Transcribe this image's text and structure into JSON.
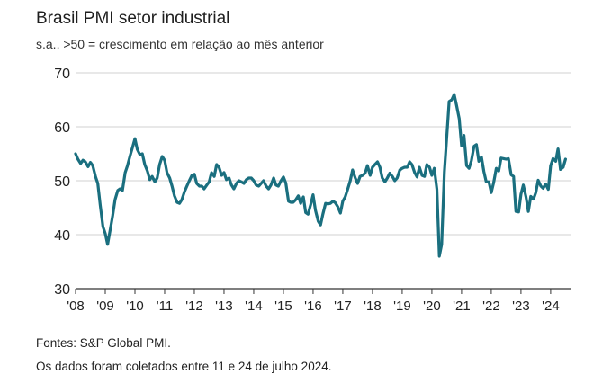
{
  "chart_data": {
    "type": "line",
    "title": "Brasil PMI setor industrial",
    "subtitle": "s.a., >50 = crescimento em relação ao mês anterior",
    "xlabel": "",
    "ylabel": "",
    "ylim": [
      30,
      70
    ],
    "yticks": [
      "30",
      "40",
      "50",
      "60",
      "70"
    ],
    "xlim": [
      2008.0,
      2024.67
    ],
    "xtick_labels": [
      "'08",
      "'09",
      "'10",
      "'11",
      "'12",
      "'13",
      "'14",
      "'15",
      "'16",
      "'17",
      "'18",
      "'19",
      "'20",
      "'21",
      "'22",
      "'23",
      "'24"
    ],
    "grid": "horizontal",
    "color": "#1a6f7f",
    "series": [
      {
        "name": "Brasil PMI setor industrial",
        "values": [
          [
            2008.0,
            55.0
          ],
          [
            2008.08,
            54.0
          ],
          [
            2008.17,
            53.2
          ],
          [
            2008.25,
            53.8
          ],
          [
            2008.33,
            53.5
          ],
          [
            2008.42,
            52.6
          ],
          [
            2008.5,
            53.4
          ],
          [
            2008.58,
            52.8
          ],
          [
            2008.67,
            50.8
          ],
          [
            2008.75,
            49.5
          ],
          [
            2008.83,
            45.5
          ],
          [
            2008.92,
            41.5
          ],
          [
            2009.0,
            40.2
          ],
          [
            2009.08,
            38.2
          ],
          [
            2009.17,
            41.0
          ],
          [
            2009.25,
            43.5
          ],
          [
            2009.33,
            46.5
          ],
          [
            2009.42,
            48.2
          ],
          [
            2009.5,
            48.5
          ],
          [
            2009.58,
            48.2
          ],
          [
            2009.67,
            51.5
          ],
          [
            2009.75,
            52.8
          ],
          [
            2009.83,
            54.5
          ],
          [
            2009.92,
            56.2
          ],
          [
            2010.0,
            57.8
          ],
          [
            2010.08,
            55.8
          ],
          [
            2010.17,
            54.8
          ],
          [
            2010.25,
            55.0
          ],
          [
            2010.33,
            53.0
          ],
          [
            2010.42,
            51.8
          ],
          [
            2010.5,
            50.2
          ],
          [
            2010.58,
            50.8
          ],
          [
            2010.67,
            49.8
          ],
          [
            2010.75,
            50.5
          ],
          [
            2010.83,
            53.0
          ],
          [
            2010.92,
            54.5
          ],
          [
            2011.0,
            53.8
          ],
          [
            2011.08,
            51.5
          ],
          [
            2011.17,
            50.5
          ],
          [
            2011.25,
            49.0
          ],
          [
            2011.33,
            47.2
          ],
          [
            2011.42,
            46.0
          ],
          [
            2011.5,
            45.8
          ],
          [
            2011.58,
            46.5
          ],
          [
            2011.67,
            48.0
          ],
          [
            2011.75,
            49.0
          ],
          [
            2011.83,
            50.0
          ],
          [
            2011.92,
            51.0
          ],
          [
            2012.0,
            51.2
          ],
          [
            2012.08,
            49.5
          ],
          [
            2012.17,
            49.0
          ],
          [
            2012.25,
            49.0
          ],
          [
            2012.33,
            48.5
          ],
          [
            2012.42,
            49.2
          ],
          [
            2012.5,
            49.8
          ],
          [
            2012.58,
            51.5
          ],
          [
            2012.67,
            50.8
          ],
          [
            2012.75,
            53.0
          ],
          [
            2012.83,
            52.5
          ],
          [
            2012.92,
            51.0
          ],
          [
            2013.0,
            51.5
          ],
          [
            2013.08,
            50.2
          ],
          [
            2013.17,
            50.5
          ],
          [
            2013.25,
            49.2
          ],
          [
            2013.33,
            48.5
          ],
          [
            2013.42,
            49.5
          ],
          [
            2013.5,
            50.0
          ],
          [
            2013.58,
            49.8
          ],
          [
            2013.67,
            49.5
          ],
          [
            2013.75,
            50.2
          ],
          [
            2013.83,
            50.5
          ],
          [
            2013.92,
            50.5
          ],
          [
            2014.0,
            50.0
          ],
          [
            2014.08,
            49.2
          ],
          [
            2014.17,
            49.0
          ],
          [
            2014.25,
            49.5
          ],
          [
            2014.33,
            50.0
          ],
          [
            2014.42,
            49.0
          ],
          [
            2014.5,
            48.5
          ],
          [
            2014.58,
            49.2
          ],
          [
            2014.67,
            50.5
          ],
          [
            2014.75,
            49.2
          ],
          [
            2014.83,
            49.0
          ],
          [
            2014.92,
            50.0
          ],
          [
            2015.0,
            50.7
          ],
          [
            2015.08,
            49.6
          ],
          [
            2015.17,
            46.2
          ],
          [
            2015.25,
            46.0
          ],
          [
            2015.33,
            46.0
          ],
          [
            2015.42,
            46.5
          ],
          [
            2015.5,
            47.2
          ],
          [
            2015.58,
            45.8
          ],
          [
            2015.67,
            47.0
          ],
          [
            2015.75,
            44.1
          ],
          [
            2015.83,
            43.8
          ],
          [
            2015.92,
            45.6
          ],
          [
            2016.0,
            47.4
          ],
          [
            2016.08,
            44.5
          ],
          [
            2016.17,
            42.5
          ],
          [
            2016.25,
            41.8
          ],
          [
            2016.33,
            43.8
          ],
          [
            2016.42,
            45.8
          ],
          [
            2016.5,
            45.7
          ],
          [
            2016.58,
            45.8
          ],
          [
            2016.67,
            46.2
          ],
          [
            2016.75,
            45.9
          ],
          [
            2016.83,
            45.2
          ],
          [
            2016.92,
            44.0
          ],
          [
            2017.0,
            46.2
          ],
          [
            2017.08,
            47.0
          ],
          [
            2017.17,
            48.5
          ],
          [
            2017.25,
            50.0
          ],
          [
            2017.33,
            52.0
          ],
          [
            2017.42,
            50.5
          ],
          [
            2017.5,
            49.5
          ],
          [
            2017.58,
            50.8
          ],
          [
            2017.67,
            51.0
          ],
          [
            2017.75,
            51.4
          ],
          [
            2017.83,
            52.8
          ],
          [
            2017.92,
            51.0
          ],
          [
            2018.0,
            52.5
          ],
          [
            2018.08,
            53.0
          ],
          [
            2018.17,
            53.5
          ],
          [
            2018.25,
            52.5
          ],
          [
            2018.33,
            50.5
          ],
          [
            2018.42,
            49.8
          ],
          [
            2018.5,
            50.5
          ],
          [
            2018.58,
            51.4
          ],
          [
            2018.67,
            50.8
          ],
          [
            2018.75,
            50.0
          ],
          [
            2018.83,
            50.5
          ],
          [
            2018.92,
            52.0
          ],
          [
            2019.0,
            52.3
          ],
          [
            2019.08,
            52.5
          ],
          [
            2019.17,
            52.5
          ],
          [
            2019.25,
            53.5
          ],
          [
            2019.33,
            53.0
          ],
          [
            2019.42,
            51.5
          ],
          [
            2019.5,
            50.7
          ],
          [
            2019.58,
            52.5
          ],
          [
            2019.67,
            51.0
          ],
          [
            2019.75,
            50.8
          ],
          [
            2019.83,
            53.0
          ],
          [
            2019.92,
            52.5
          ],
          [
            2020.0,
            51.0
          ],
          [
            2020.08,
            52.3
          ],
          [
            2020.17,
            48.4
          ],
          [
            2020.25,
            36.0
          ],
          [
            2020.33,
            38.2
          ],
          [
            2020.42,
            51.6
          ],
          [
            2020.5,
            58.0
          ],
          [
            2020.58,
            64.7
          ],
          [
            2020.67,
            65.0
          ],
          [
            2020.75,
            66.0
          ],
          [
            2020.83,
            64.0
          ],
          [
            2020.92,
            61.5
          ],
          [
            2021.0,
            56.5
          ],
          [
            2021.08,
            58.4
          ],
          [
            2021.17,
            52.8
          ],
          [
            2021.25,
            52.3
          ],
          [
            2021.33,
            53.7
          ],
          [
            2021.42,
            56.4
          ],
          [
            2021.5,
            56.7
          ],
          [
            2021.58,
            53.6
          ],
          [
            2021.67,
            54.4
          ],
          [
            2021.75,
            51.7
          ],
          [
            2021.83,
            49.8
          ],
          [
            2021.92,
            49.8
          ],
          [
            2022.0,
            47.8
          ],
          [
            2022.08,
            49.6
          ],
          [
            2022.17,
            52.3
          ],
          [
            2022.25,
            51.8
          ],
          [
            2022.33,
            54.2
          ],
          [
            2022.42,
            54.1
          ],
          [
            2022.5,
            54.0
          ],
          [
            2022.58,
            54.1
          ],
          [
            2022.67,
            51.1
          ],
          [
            2022.75,
            50.8
          ],
          [
            2022.83,
            44.3
          ],
          [
            2022.92,
            44.2
          ],
          [
            2023.0,
            47.5
          ],
          [
            2023.08,
            49.2
          ],
          [
            2023.17,
            47.0
          ],
          [
            2023.25,
            44.3
          ],
          [
            2023.33,
            47.1
          ],
          [
            2023.42,
            46.6
          ],
          [
            2023.5,
            47.8
          ],
          [
            2023.58,
            50.1
          ],
          [
            2023.67,
            49.0
          ],
          [
            2023.75,
            48.6
          ],
          [
            2023.83,
            49.4
          ],
          [
            2023.92,
            48.4
          ],
          [
            2024.0,
            52.8
          ],
          [
            2024.08,
            54.1
          ],
          [
            2024.17,
            53.6
          ],
          [
            2024.25,
            55.9
          ],
          [
            2024.33,
            52.1
          ],
          [
            2024.42,
            52.5
          ],
          [
            2024.5,
            54.0
          ]
        ]
      }
    ]
  },
  "footer": {
    "source": "Fontes: S&P Global PMI.",
    "note": "Os dados foram coletados entre 11 e 24 de julho 2024."
  }
}
